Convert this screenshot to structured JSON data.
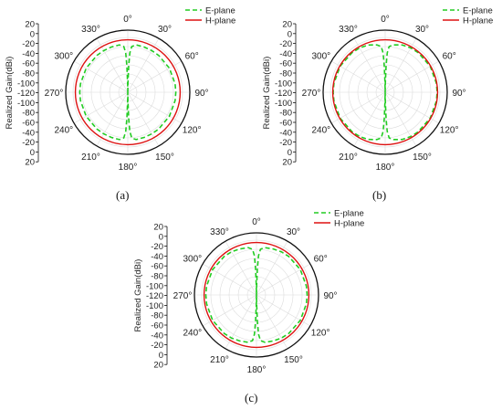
{
  "chart_data": [
    {
      "type": "polar-line",
      "panel_label": "(a)",
      "ylabel": "Realized Gain(dBi)",
      "r_ticks": [
        "20",
        "0",
        "-20",
        "-40",
        "-60",
        "-80",
        "-100",
        "-120",
        "-100",
        "-80",
        "-60",
        "-40",
        "-20",
        "0",
        "20"
      ],
      "radial_range": [
        -120,
        20
      ],
      "angle_ticks": [
        "0°",
        "330°",
        "300°",
        "270°",
        "240°",
        "210°",
        "180°",
        "150°",
        "120°",
        "90°",
        "60°",
        "30°"
      ],
      "legend_position": "top-right",
      "series": [
        {
          "name": "E-plane",
          "color": "#22cc22",
          "style": "dashed",
          "angles": [
            0,
            1,
            2,
            3,
            5,
            10,
            20,
            30,
            40,
            60,
            80,
            90,
            100,
            120,
            140,
            150,
            160,
            170,
            175,
            177,
            178,
            179,
            180
          ],
          "gain": [
            -120,
            -100,
            -60,
            -30,
            -15,
            -10,
            -10,
            -10,
            -10,
            -10,
            -10,
            -10,
            -10,
            -10,
            -10,
            -10,
            -10,
            -10,
            -15,
            -30,
            -60,
            -100,
            -120
          ]
        },
        {
          "name": "H-plane",
          "color": "#dd1111",
          "style": "solid",
          "angles": [
            0,
            90,
            180,
            270
          ],
          "gain": [
            0,
            0,
            0,
            0
          ]
        }
      ]
    },
    {
      "type": "polar-line",
      "panel_label": "(b)",
      "ylabel": "Realized Gain(dBi)",
      "r_ticks": [
        "20",
        "0",
        "-20",
        "-40",
        "-60",
        "-80",
        "-100",
        "-120",
        "-100",
        "-80",
        "-60",
        "-40",
        "-20",
        "0",
        "20"
      ],
      "radial_range": [
        -120,
        20
      ],
      "angle_ticks": [
        "0°",
        "330°",
        "300°",
        "270°",
        "240°",
        "210°",
        "180°",
        "150°",
        "120°",
        "90°",
        "60°",
        "30°"
      ],
      "legend_position": "top-right",
      "series": [
        {
          "name": "E-plane",
          "color": "#22cc22",
          "style": "dashed",
          "angles": [
            0,
            1,
            2,
            3,
            5,
            10,
            20,
            30,
            40,
            60,
            80,
            90,
            100,
            120,
            140,
            150,
            160,
            170,
            175,
            177,
            178,
            179,
            180
          ],
          "gain": [
            -120,
            -100,
            -60,
            -30,
            -15,
            -10,
            -5,
            -3,
            -2,
            -1,
            -1,
            -1,
            -1,
            -1,
            -2,
            -3,
            -5,
            -10,
            -15,
            -30,
            -60,
            -100,
            -120
          ]
        },
        {
          "name": "H-plane",
          "color": "#dd1111",
          "style": "solid",
          "angles": [
            0,
            90,
            180,
            270
          ],
          "gain": [
            0,
            0,
            0,
            0
          ]
        }
      ]
    },
    {
      "type": "polar-line",
      "panel_label": "(c)",
      "ylabel": "Realized Gain(dBi)",
      "r_ticks": [
        "20",
        "0",
        "-20",
        "-40",
        "-60",
        "-80",
        "-100",
        "-120",
        "-100",
        "-80",
        "-60",
        "-40",
        "-20",
        "0",
        "20"
      ],
      "radial_range": [
        -120,
        20
      ],
      "angle_ticks": [
        "0°",
        "330°",
        "300°",
        "270°",
        "240°",
        "210°",
        "180°",
        "150°",
        "120°",
        "90°",
        "60°",
        "30°"
      ],
      "legend_position": "top-right",
      "series": [
        {
          "name": "E-plane",
          "color": "#22cc22",
          "style": "dashed",
          "angles": [
            0,
            1,
            2,
            3,
            5,
            10,
            20,
            30,
            40,
            60,
            80,
            90,
            100,
            120,
            140,
            150,
            160,
            170,
            175,
            177,
            178,
            179,
            180
          ],
          "gain": [
            -120,
            -100,
            -60,
            -30,
            -15,
            -10,
            -8,
            -6,
            -5,
            -4,
            -4,
            -4,
            -4,
            -4,
            -5,
            -6,
            -8,
            -10,
            -15,
            -30,
            -60,
            -100,
            -120
          ]
        },
        {
          "name": "H-plane",
          "color": "#dd1111",
          "style": "solid",
          "angles": [
            0,
            90,
            180,
            270
          ],
          "gain": [
            0,
            0,
            0,
            0
          ]
        }
      ]
    }
  ]
}
